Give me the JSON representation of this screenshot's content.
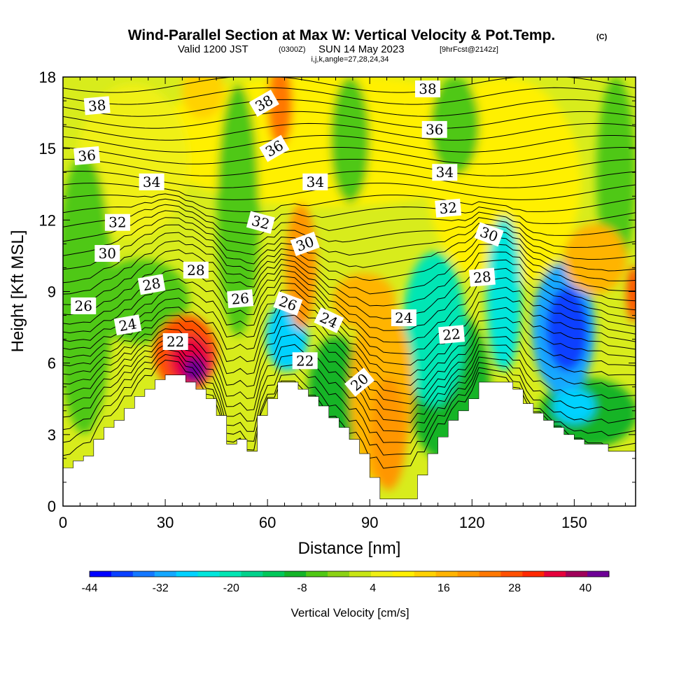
{
  "chart_data": {
    "type": "heatmap",
    "title": "Wind-Parallel Section at Max W: Vertical Velocity & Pot.Temp.",
    "title_mark": "(C)",
    "subtitle": {
      "valid_prefix": "Valid 1200 JST",
      "zulu": "(0300Z)",
      "date": "SUN 14 May 2023",
      "forecast": "[9hrFcst@2142z]"
    },
    "params_line": "i,j,k,angle=27,28,24,34",
    "xlabel": "Distance [nm]",
    "ylabel": "Height [Kft MSL]",
    "xlim": [
      0,
      168
    ],
    "ylim": [
      0,
      18
    ],
    "xticks": [
      0,
      30,
      60,
      90,
      120,
      150
    ],
    "yticks": [
      0,
      3,
      6,
      9,
      12,
      15,
      18
    ],
    "colorbar": {
      "label": "Vertical Velocity [cm/s]",
      "min": -44,
      "max": 44,
      "step": 4,
      "tick_labels": [
        "-44",
        "-32",
        "-20",
        "-8",
        "4",
        "16",
        "28",
        "40"
      ],
      "tick_values": [
        -44,
        -32,
        -20,
        -8,
        4,
        16,
        28,
        40
      ],
      "colors": [
        "#0000ff",
        "#0a40ff",
        "#1478ff",
        "#14a8ff",
        "#00d2ff",
        "#00e6dc",
        "#00e6b4",
        "#00d28c",
        "#00c85a",
        "#14b428",
        "#50c814",
        "#8cd214",
        "#c8e614",
        "#f0f014",
        "#fff000",
        "#ffd200",
        "#ffb400",
        "#ff9600",
        "#ff7800",
        "#ff5000",
        "#ff2800",
        "#e6003c",
        "#a0005a",
        "#6e0096"
      ]
    },
    "terrain": [
      [
        0,
        1.6
      ],
      [
        3,
        1.6
      ],
      [
        3,
        1.9
      ],
      [
        6,
        1.9
      ],
      [
        6,
        2.1
      ],
      [
        9,
        2.1
      ],
      [
        9,
        2.8
      ],
      [
        12,
        2.8
      ],
      [
        12,
        3.3
      ],
      [
        15,
        3.3
      ],
      [
        15,
        3.6
      ],
      [
        18,
        3.6
      ],
      [
        18,
        4.1
      ],
      [
        21,
        4.1
      ],
      [
        21,
        4.6
      ],
      [
        24,
        4.6
      ],
      [
        24,
        4.9
      ],
      [
        27,
        4.9
      ],
      [
        27,
        5.3
      ],
      [
        30,
        5.3
      ],
      [
        30,
        5.5
      ],
      [
        36,
        5.5
      ],
      [
        36,
        5.2
      ],
      [
        39,
        5.2
      ],
      [
        39,
        4.9
      ],
      [
        42,
        4.9
      ],
      [
        42,
        4.5
      ],
      [
        45,
        4.5
      ],
      [
        45,
        3.8
      ],
      [
        48,
        3.8
      ],
      [
        48,
        2.6
      ],
      [
        51,
        2.6
      ],
      [
        51,
        2.8
      ],
      [
        54,
        2.8
      ],
      [
        54,
        2.3
      ],
      [
        57,
        2.3
      ],
      [
        57,
        3.8
      ],
      [
        60,
        3.8
      ],
      [
        60,
        4.5
      ],
      [
        63,
        4.5
      ],
      [
        63,
        5.2
      ],
      [
        69,
        5.2
      ],
      [
        69,
        4.9
      ],
      [
        72,
        4.9
      ],
      [
        72,
        4.6
      ],
      [
        75,
        4.6
      ],
      [
        75,
        4.2
      ],
      [
        78,
        4.2
      ],
      [
        78,
        3.7
      ],
      [
        81,
        3.7
      ],
      [
        81,
        3.3
      ],
      [
        84,
        3.3
      ],
      [
        84,
        2.8
      ],
      [
        87,
        2.8
      ],
      [
        87,
        2.2
      ],
      [
        90,
        2.2
      ],
      [
        90,
        1.2
      ],
      [
        93,
        1.2
      ],
      [
        93,
        0.3
      ],
      [
        104,
        0.3
      ],
      [
        104,
        1.3
      ],
      [
        107,
        1.3
      ],
      [
        107,
        2.2
      ],
      [
        110,
        2.2
      ],
      [
        110,
        2.9
      ],
      [
        113,
        2.9
      ],
      [
        113,
        3.6
      ],
      [
        116,
        3.6
      ],
      [
        116,
        4.0
      ],
      [
        119,
        4.0
      ],
      [
        119,
        4.5
      ],
      [
        122,
        4.5
      ],
      [
        122,
        5.2
      ],
      [
        132,
        5.2
      ],
      [
        132,
        4.9
      ],
      [
        135,
        4.9
      ],
      [
        135,
        4.3
      ],
      [
        138,
        4.3
      ],
      [
        138,
        3.9
      ],
      [
        141,
        3.9
      ],
      [
        141,
        3.6
      ],
      [
        144,
        3.6
      ],
      [
        144,
        3.3
      ],
      [
        147,
        3.3
      ],
      [
        147,
        3.0
      ],
      [
        150,
        3.0
      ],
      [
        150,
        2.8
      ],
      [
        153,
        2.8
      ],
      [
        153,
        2.6
      ],
      [
        160,
        2.6
      ],
      [
        160,
        2.3
      ],
      [
        168,
        2.3
      ]
    ],
    "isentrope_labels": [
      {
        "text": "38",
        "x": 10,
        "y": 16.8,
        "angle": -5
      },
      {
        "text": "36",
        "x": 7,
        "y": 14.7,
        "angle": -5
      },
      {
        "text": "34",
        "x": 26,
        "y": 13.6,
        "angle": 0
      },
      {
        "text": "32",
        "x": 16,
        "y": 11.9,
        "angle": 0
      },
      {
        "text": "30",
        "x": 13,
        "y": 10.6,
        "angle": 0
      },
      {
        "text": "28",
        "x": 26,
        "y": 9.3,
        "angle": -10
      },
      {
        "text": "26",
        "x": 6,
        "y": 8.4,
        "angle": 0
      },
      {
        "text": "24",
        "x": 19,
        "y": 7.6,
        "angle": -10
      },
      {
        "text": "22",
        "x": 33,
        "y": 6.9,
        "angle": 0
      },
      {
        "text": "28",
        "x": 39,
        "y": 9.9,
        "angle": 0
      },
      {
        "text": "26",
        "x": 52,
        "y": 8.7,
        "angle": -5
      },
      {
        "text": "38",
        "x": 59,
        "y": 16.9,
        "angle": -30
      },
      {
        "text": "36",
        "x": 62,
        "y": 15.0,
        "angle": -30
      },
      {
        "text": "34",
        "x": 74,
        "y": 13.6,
        "angle": 0
      },
      {
        "text": "32",
        "x": 58,
        "y": 11.9,
        "angle": 15
      },
      {
        "text": "30",
        "x": 71,
        "y": 11.0,
        "angle": -20
      },
      {
        "text": "26",
        "x": 66,
        "y": 8.5,
        "angle": 20
      },
      {
        "text": "24",
        "x": 78,
        "y": 7.8,
        "angle": 25
      },
      {
        "text": "22",
        "x": 71,
        "y": 6.1,
        "angle": 0
      },
      {
        "text": "20",
        "x": 87,
        "y": 5.2,
        "angle": -40
      },
      {
        "text": "24",
        "x": 100,
        "y": 7.9,
        "angle": 0
      },
      {
        "text": "22",
        "x": 114,
        "y": 7.2,
        "angle": -5
      },
      {
        "text": "28",
        "x": 123,
        "y": 9.6,
        "angle": -5
      },
      {
        "text": "30",
        "x": 125,
        "y": 11.4,
        "angle": 20
      },
      {
        "text": "32",
        "x": 113,
        "y": 12.5,
        "angle": -5
      },
      {
        "text": "34",
        "x": 112,
        "y": 14.0,
        "angle": 0
      },
      {
        "text": "36",
        "x": 109,
        "y": 15.8,
        "angle": 0
      },
      {
        "text": "38",
        "x": 107,
        "y": 17.5,
        "angle": 0
      }
    ]
  }
}
